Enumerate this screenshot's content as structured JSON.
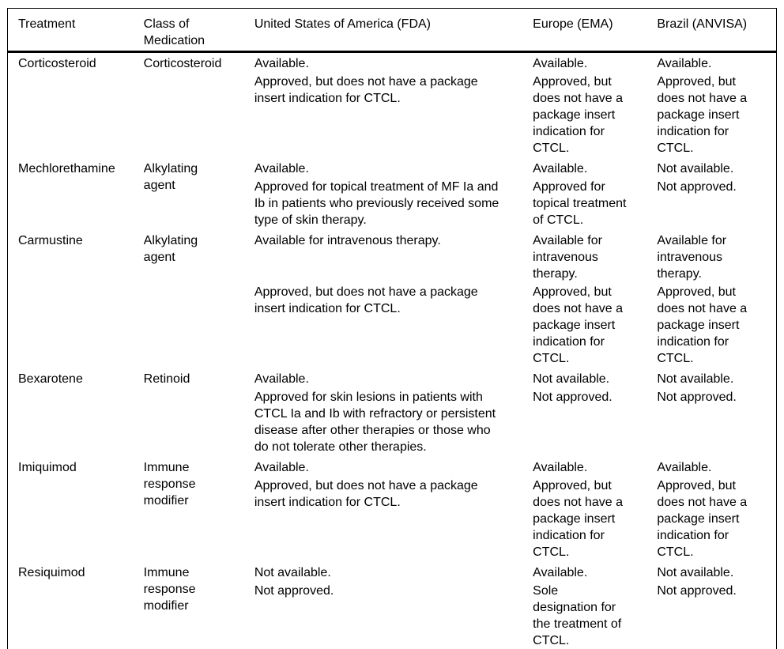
{
  "colors": {
    "text": "#000000",
    "rule": "#000000",
    "background": "#ffffff"
  },
  "table": {
    "headers": {
      "treatment": "Treatment",
      "class": "Class of Medication",
      "fda": "United States of America (FDA)",
      "ema": "Europe (EMA)",
      "anvisa": "Brazil (ANVISA)"
    },
    "rows": [
      {
        "treatment": "Corticosteroid",
        "class": "Corticosteroid",
        "fda_p1": "Available.",
        "fda_p2": "Approved, but does not have a package\ninsert indication for CTCL.",
        "ema_p1": "Available.",
        "ema_p2": "Approved, but\ndoes not have a\npackage insert\nindication for\nCTCL.",
        "anvisa_p1": "Available.",
        "anvisa_p2": "Approved, but\ndoes not have a\npackage insert\nindication for\nCTCL."
      },
      {
        "treatment": "Mechlorethamine",
        "class": "Alkylating agent",
        "fda_p1": "Available.",
        "fda_p2": "Approved for topical treatment of MF Ia and\nIb in patients who previously received some\ntype of skin therapy.",
        "ema_p1": "Available.",
        "ema_p2": "Approved for\ntopical treatment\nof CTCL.",
        "anvisa_p1": "Not available.",
        "anvisa_p2": "Not approved."
      },
      {
        "treatment": "Carmustine",
        "class": "Alkylating agent",
        "fda_p1": "Available for intravenous therapy.",
        "fda_p2": "Approved, but does not have a package\ninsert indication for CTCL.",
        "ema_p1": "Available for\nintravenous\ntherapy.",
        "ema_p2": "Approved, but\ndoes not have a\npackage insert\nindication for\nCTCL.",
        "anvisa_p1": "Available for\nintravenous\ntherapy.",
        "anvisa_p2": "Approved, but\ndoes not have a\npackage insert\nindication for\nCTCL."
      },
      {
        "treatment": "Bexarotene",
        "class": "Retinoid",
        "fda_p1": "Available.",
        "fda_p2": "Approved for skin lesions in patients with\nCTCL Ia and Ib with refractory or persistent\ndisease after other therapies or those who\ndo not tolerate other therapies.",
        "ema_p1": "Not available.",
        "ema_p2": "Not approved.",
        "anvisa_p1": "Not available.",
        "anvisa_p2": "Not approved."
      },
      {
        "treatment": "Imiquimod",
        "class": "Immune response modifier",
        "fda_p1": "Available.",
        "fda_p2": "Approved, but does not have a package\ninsert indication for CTCL.",
        "ema_p1": "Available.",
        "ema_p2": "Approved, but\ndoes not have a\npackage insert\nindication for\nCTCL.",
        "anvisa_p1": "Available.",
        "anvisa_p2": "Approved, but\ndoes not have a\npackage insert\nindication for\nCTCL."
      },
      {
        "treatment": "Resiquimod",
        "class": "Immune response modifier",
        "fda_p1": "Not available.",
        "fda_p2": "Not approved.",
        "ema_p1": "Available.",
        "ema_p2": "Sole\ndesignation for\nthe treatment of\nCTCL.",
        "anvisa_p1": "Not available.",
        "anvisa_p2": "Not approved."
      }
    ]
  }
}
